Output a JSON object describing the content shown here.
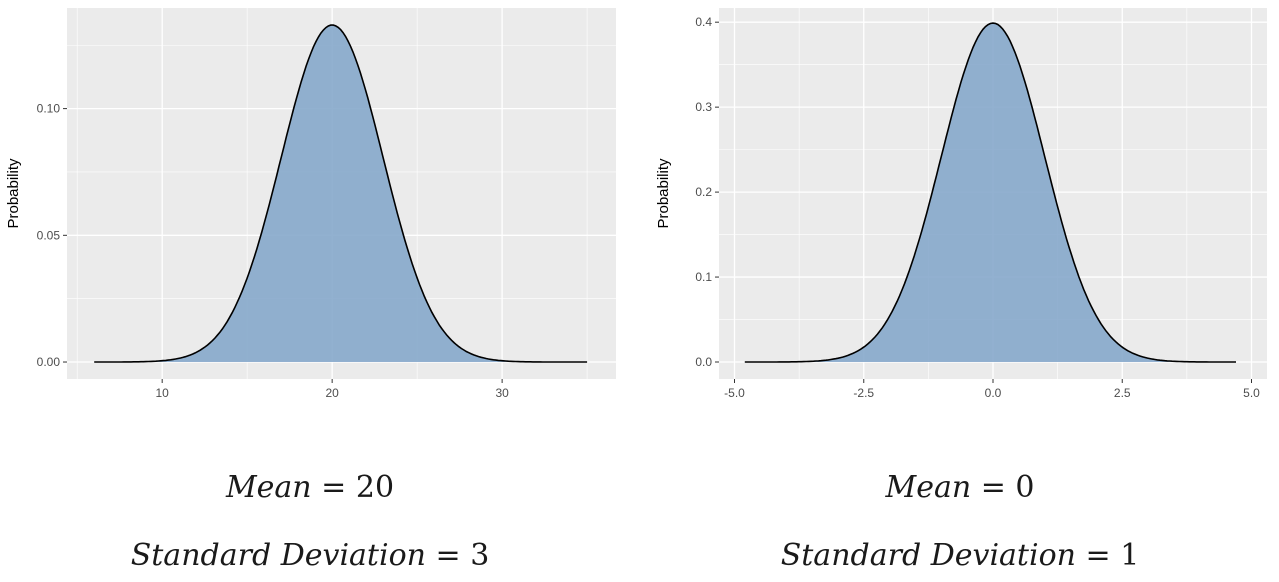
{
  "chart_data": [
    {
      "type": "area",
      "mean": 20,
      "sd": 3,
      "x_range": [
        6,
        35
      ],
      "xlim": [
        4.4,
        36.7
      ],
      "ylim": [
        -0.0067,
        0.1397
      ],
      "xticks": [
        10,
        20,
        30
      ],
      "yticks": [
        0.0,
        0.05,
        0.1
      ],
      "x_tick_labels": [
        "10",
        "20",
        "30"
      ],
      "y_tick_labels": [
        "0.00",
        "0.05",
        "0.10"
      ],
      "xlabel": "",
      "ylabel": "Probability",
      "grid": true,
      "fill_color": "#86a8cb",
      "line_color": "#000000",
      "panel_color": "#ebebeb",
      "caption": {
        "mean_label": "Mean",
        "mean_value": "20",
        "sd_label": "Standard Deviation",
        "sd_value": "3"
      }
    },
    {
      "type": "area",
      "mean": 0,
      "sd": 1,
      "x_range": [
        -4.8,
        4.7
      ],
      "xlim": [
        -5.3,
        5.3
      ],
      "ylim": [
        -0.02,
        0.4167
      ],
      "xticks": [
        -5.0,
        -2.5,
        0.0,
        2.5,
        5.0
      ],
      "yticks": [
        0.0,
        0.1,
        0.2,
        0.3,
        0.4
      ],
      "x_tick_labels": [
        "-5.0",
        "-2.5",
        "0.0",
        "2.5",
        "5.0"
      ],
      "y_tick_labels": [
        "0.0",
        "0.1",
        "0.2",
        "0.3",
        "0.4"
      ],
      "xlabel": "",
      "ylabel": "Probability",
      "grid": true,
      "fill_color": "#86a8cb",
      "line_color": "#000000",
      "panel_color": "#ebebeb",
      "caption": {
        "mean_label": "Mean",
        "mean_value": "0",
        "sd_label": "Standard Deviation",
        "sd_value": "1"
      }
    }
  ]
}
